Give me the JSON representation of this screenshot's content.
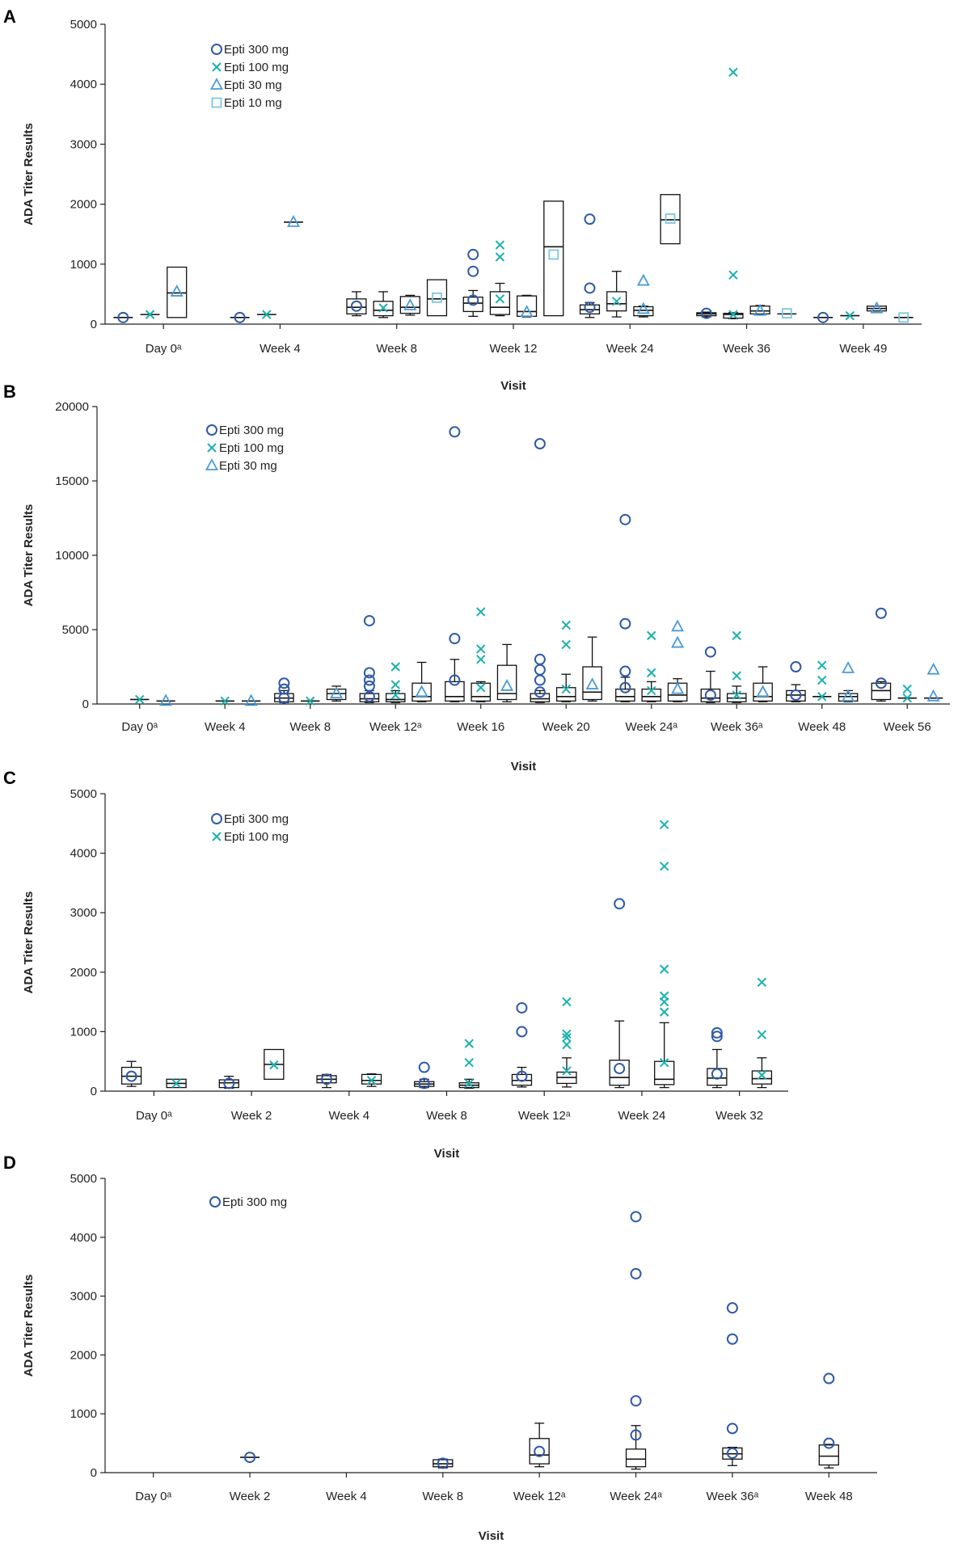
{
  "colors": {
    "epti300": "#2f5aa8",
    "epti100": "#1bb0b0",
    "epti30": "#4a9bd8",
    "epti10": "#7ac7de",
    "box": "#111111"
  },
  "chart_data": [
    {
      "type": "box",
      "panel": "A",
      "ylabel": "ADA Titer Results",
      "xlabel": "Visit",
      "ylim": [
        0,
        5000
      ],
      "yticks": [
        0,
        1000,
        2000,
        3000,
        4000,
        5000
      ],
      "categories": [
        "Day 0ᵃ",
        "Week 4",
        "Week 8",
        "Week 12",
        "Week 24",
        "Week 36",
        "Week 49"
      ],
      "series": [
        {
          "name": "Epti 300 mg",
          "marker": "circle",
          "color": "epti300",
          "boxes": [
            {
              "cat": 0,
              "median": 110,
              "mean": 110
            },
            {
              "cat": 1,
              "median": 110,
              "mean": 110
            },
            {
              "cat": 2,
              "q1": 170,
              "median": 280,
              "q3": 420,
              "wlo": 140,
              "whi": 540,
              "mean": 300
            },
            {
              "cat": 3,
              "q1": 210,
              "median": 350,
              "q3": 450,
              "wlo": 130,
              "whi": 560,
              "mean": 400,
              "outliers": [
                880,
                1160
              ]
            },
            {
              "cat": 4,
              "q1": 170,
              "median": 240,
              "q3": 320,
              "wlo": 110,
              "whi": 360,
              "mean": 280,
              "outliers": [
                600,
                1750
              ]
            },
            {
              "cat": 5,
              "q1": 140,
              "median": 170,
              "q3": 190,
              "wlo": 120,
              "whi": 200,
              "mean": 180
            },
            {
              "cat": 6,
              "median": 110,
              "mean": 110
            }
          ]
        },
        {
          "name": "Epti 100 mg",
          "marker": "x",
          "color": "epti100",
          "boxes": [
            {
              "cat": 0,
              "median": 160,
              "mean": 160
            },
            {
              "cat": 1,
              "median": 160,
              "mean": 160
            },
            {
              "cat": 2,
              "q1": 140,
              "median": 230,
              "q3": 380,
              "wlo": 110,
              "whi": 540,
              "mean": 270
            },
            {
              "cat": 3,
              "q1": 160,
              "median": 280,
              "q3": 540,
              "wlo": 140,
              "whi": 680,
              "mean": 420,
              "outliers": [
                1120,
                1320
              ]
            },
            {
              "cat": 4,
              "q1": 220,
              "median": 340,
              "q3": 540,
              "wlo": 120,
              "whi": 880,
              "mean": 380
            },
            {
              "cat": 5,
              "q1": 100,
              "median": 160,
              "q3": 180,
              "wlo": 90,
              "whi": 190,
              "mean": 160,
              "outliers": [
                820,
                4200
              ]
            },
            {
              "cat": 6,
              "median": 140,
              "mean": 140
            }
          ]
        },
        {
          "name": "Epti 30 mg",
          "marker": "triangle",
          "color": "epti30",
          "boxes": [
            {
              "cat": 0,
              "q1": 110,
              "median": 520,
              "q3": 950,
              "mean": 540
            },
            {
              "cat": 1,
              "median": 1700,
              "mean": 1700
            },
            {
              "cat": 2,
              "q1": 180,
              "median": 280,
              "q3": 460,
              "wlo": 150,
              "whi": 480,
              "mean": 310
            },
            {
              "cat": 3,
              "q1": 130,
              "median": 210,
              "q3": 470,
              "wlo": 120,
              "whi": 480,
              "mean": 200
            },
            {
              "cat": 4,
              "q1": 140,
              "median": 230,
              "q3": 290,
              "wlo": 120,
              "whi": 300,
              "mean": 250,
              "outliers": [
                720
              ]
            },
            {
              "cat": 5,
              "q1": 170,
              "median": 220,
              "q3": 300,
              "wlo": 150,
              "whi": 310,
              "mean": 220
            },
            {
              "cat": 6,
              "q1": 220,
              "median": 260,
              "q3": 300,
              "mean": 260
            }
          ]
        },
        {
          "name": "Epti 10 mg",
          "marker": "square",
          "color": "epti10",
          "boxes": [
            {
              "cat": 2,
              "q1": 140,
              "median": 420,
              "q3": 740,
              "mean": 440
            },
            {
              "cat": 3,
              "q1": 140,
              "median": 1290,
              "q3": 2050,
              "mean": 1160
            },
            {
              "cat": 4,
              "q1": 1340,
              "median": 1740,
              "q3": 2160,
              "mean": 1760
            },
            {
              "cat": 5,
              "median": 170,
              "mean": 180
            },
            {
              "cat": 6,
              "median": 110,
              "mean": 110
            }
          ]
        }
      ]
    },
    {
      "type": "box",
      "panel": "B",
      "ylabel": "ADA Titer Results",
      "xlabel": "Visit",
      "ylim": [
        0,
        20000
      ],
      "yticks": [
        0,
        5000,
        10000,
        15000,
        20000
      ],
      "categories": [
        "Day 0ᵃ",
        "Week 4",
        "Week 8",
        "Week 12ᵃ",
        "Week 16",
        "Week 20",
        "Week 24ᵃ",
        "Week 36ᵃ",
        "Week 48",
        "Week 56"
      ],
      "series": [
        {
          "name": "Epti 300 mg",
          "marker": "circle",
          "color": "epti300",
          "boxes": [
            {
              "cat": 2,
              "q1": 150,
              "median": 400,
              "q3": 700,
              "wlo": 100,
              "whi": 900,
              "mean": 400,
              "outliers": [
                1000,
                1400
              ]
            },
            {
              "cat": 3,
              "q1": 150,
              "median": 350,
              "q3": 700,
              "wlo": 100,
              "whi": 900,
              "mean": 500,
              "outliers": [
                1200,
                1600,
                2100,
                5600
              ]
            },
            {
              "cat": 4,
              "q1": 200,
              "median": 500,
              "q3": 1500,
              "wlo": 150,
              "whi": 3000,
              "mean": 1600,
              "outliers": [
                4400,
                18300
              ]
            },
            {
              "cat": 5,
              "q1": 150,
              "median": 350,
              "q3": 700,
              "wlo": 100,
              "whi": 900,
              "mean": 800,
              "outliers": [
                1600,
                2300,
                3000,
                17500
              ]
            },
            {
              "cat": 6,
              "q1": 200,
              "median": 500,
              "q3": 1000,
              "wlo": 150,
              "whi": 1800,
              "mean": 1100,
              "outliers": [
                2200,
                5400,
                12400
              ]
            },
            {
              "cat": 7,
              "q1": 150,
              "median": 400,
              "q3": 1000,
              "wlo": 100,
              "whi": 2200,
              "mean": 600,
              "outliers": [
                3500
              ]
            },
            {
              "cat": 8,
              "q1": 200,
              "median": 600,
              "q3": 900,
              "wlo": 150,
              "whi": 1300,
              "mean": 600,
              "outliers": [
                2500
              ]
            },
            {
              "cat": 9,
              "q1": 300,
              "median": 900,
              "q3": 1400,
              "wlo": 200,
              "whi": 1500,
              "mean": 1400,
              "outliers": [
                6100
              ]
            }
          ]
        },
        {
          "name": "Epti 100 mg",
          "marker": "x",
          "color": "epti100",
          "boxes": [
            {
              "cat": 0,
              "median": 300,
              "mean": 300
            },
            {
              "cat": 1,
              "median": 200,
              "mean": 200
            },
            {
              "cat": 2,
              "median": 200,
              "mean": 200
            },
            {
              "cat": 3,
              "q1": 150,
              "median": 300,
              "q3": 700,
              "wlo": 100,
              "whi": 900,
              "mean": 600,
              "outliers": [
                1300,
                2500
              ]
            },
            {
              "cat": 4,
              "q1": 200,
              "median": 500,
              "q3": 1400,
              "wlo": 150,
              "whi": 1500,
              "mean": 1100,
              "outliers": [
                3000,
                3700,
                6200
              ]
            },
            {
              "cat": 5,
              "q1": 200,
              "median": 500,
              "q3": 1100,
              "wlo": 150,
              "whi": 2000,
              "mean": 1000,
              "outliers": [
                4000,
                5300
              ]
            },
            {
              "cat": 6,
              "q1": 200,
              "median": 500,
              "q3": 1000,
              "wlo": 150,
              "whi": 1500,
              "mean": 900,
              "outliers": [
                2100,
                4600
              ]
            },
            {
              "cat": 7,
              "q1": 150,
              "median": 400,
              "q3": 700,
              "wlo": 100,
              "whi": 1200,
              "mean": 600,
              "outliers": [
                1900,
                4600
              ]
            },
            {
              "cat": 8,
              "median": 500,
              "mean": 500,
              "outliers": [
                1600,
                2600
              ]
            },
            {
              "cat": 9,
              "median": 400,
              "mean": 400,
              "outliers": [
                1000
              ]
            }
          ]
        },
        {
          "name": "Epti 30 mg",
          "marker": "triangle",
          "color": "epti30",
          "boxes": [
            {
              "cat": 0,
              "median": 200,
              "mean": 200
            },
            {
              "cat": 1,
              "median": 200,
              "mean": 200
            },
            {
              "cat": 2,
              "q1": 300,
              "median": 700,
              "q3": 1000,
              "wlo": 200,
              "whi": 1200,
              "mean": 700
            },
            {
              "cat": 3,
              "q1": 200,
              "median": 500,
              "q3": 1400,
              "wlo": 150,
              "whi": 2800,
              "mean": 800
            },
            {
              "cat": 4,
              "q1": 300,
              "median": 700,
              "q3": 2600,
              "wlo": 150,
              "whi": 4000,
              "mean": 1200
            },
            {
              "cat": 5,
              "q1": 300,
              "median": 800,
              "q3": 2500,
              "wlo": 200,
              "whi": 4500,
              "mean": 1300
            },
            {
              "cat": 6,
              "q1": 200,
              "median": 600,
              "q3": 1400,
              "wlo": 150,
              "whi": 1700,
              "mean": 1000,
              "outliers": [
                4100,
                5200
              ]
            },
            {
              "cat": 7,
              "q1": 200,
              "median": 500,
              "q3": 1400,
              "wlo": 150,
              "whi": 2500,
              "mean": 800
            },
            {
              "cat": 8,
              "q1": 200,
              "median": 500,
              "q3": 700,
              "wlo": 150,
              "whi": 900,
              "mean": 500,
              "outliers": [
                2400
              ]
            },
            {
              "cat": 9,
              "median": 400,
              "mean": 500,
              "outliers": [
                2300
              ]
            }
          ]
        }
      ]
    },
    {
      "type": "box",
      "panel": "C",
      "ylabel": "ADA Titer Results",
      "xlabel": "Visit",
      "ylim": [
        0,
        5000
      ],
      "yticks": [
        0,
        1000,
        2000,
        3000,
        4000,
        5000
      ],
      "categories": [
        "Day 0ᵃ",
        "Week 2",
        "Week 4",
        "Week 8",
        "Week 12ᵃ",
        "Week 24",
        "Week 32"
      ],
      "series": [
        {
          "name": "Epti 300 mg",
          "marker": "circle",
          "color": "epti300",
          "boxes": [
            {
              "cat": 0,
              "q1": 120,
              "median": 250,
              "q3": 400,
              "wlo": 80,
              "whi": 500,
              "mean": 250
            },
            {
              "cat": 1,
              "q1": 60,
              "median": 140,
              "q3": 190,
              "wlo": 50,
              "whi": 250,
              "mean": 130
            },
            {
              "cat": 2,
              "q1": 140,
              "median": 200,
              "q3": 260,
              "wlo": 60,
              "whi": 280,
              "mean": 200
            },
            {
              "cat": 3,
              "q1": 80,
              "median": 120,
              "q3": 160,
              "wlo": 60,
              "whi": 200,
              "mean": 130,
              "outliers": [
                400
              ]
            },
            {
              "cat": 4,
              "q1": 100,
              "median": 180,
              "q3": 280,
              "wlo": 70,
              "whi": 400,
              "mean": 250,
              "outliers": [
                1000,
                1400
              ]
            },
            {
              "cat": 5,
              "q1": 100,
              "median": 230,
              "q3": 520,
              "wlo": 60,
              "whi": 1180,
              "mean": 380,
              "outliers": [
                3150
              ]
            },
            {
              "cat": 6,
              "q1": 100,
              "median": 220,
              "q3": 380,
              "wlo": 60,
              "whi": 700,
              "mean": 290,
              "outliers": [
                920,
                980
              ]
            }
          ]
        },
        {
          "name": "Epti 100 mg",
          "marker": "x",
          "color": "epti100",
          "boxes": [
            {
              "cat": 0,
              "q1": 60,
              "median": 130,
              "q3": 200,
              "mean": 130
            },
            {
              "cat": 1,
              "q1": 200,
              "median": 450,
              "q3": 700,
              "mean": 440
            },
            {
              "cat": 2,
              "q1": 120,
              "median": 180,
              "q3": 280,
              "wlo": 80,
              "whi": 290,
              "mean": 180
            },
            {
              "cat": 3,
              "q1": 60,
              "median": 100,
              "q3": 140,
              "wlo": 50,
              "whi": 200,
              "mean": 130,
              "outliers": [
                480,
                800
              ]
            },
            {
              "cat": 4,
              "q1": 130,
              "median": 230,
              "q3": 320,
              "wlo": 70,
              "whi": 560,
              "mean": 340,
              "outliers": [
                780,
                900,
                960,
                1500
              ]
            },
            {
              "cat": 5,
              "q1": 110,
              "median": 200,
              "q3": 500,
              "wlo": 60,
              "whi": 1150,
              "mean": 480,
              "outliers": [
                1330,
                1500,
                1600,
                2050,
                3780,
                4480
              ]
            },
            {
              "cat": 6,
              "q1": 120,
              "median": 210,
              "q3": 340,
              "wlo": 60,
              "whi": 560,
              "mean": 270,
              "outliers": [
                950,
                1830
              ]
            }
          ]
        }
      ]
    },
    {
      "type": "box",
      "panel": "D",
      "ylabel": "ADA Titer Results",
      "xlabel": "Visit",
      "ylim": [
        0,
        5000
      ],
      "yticks": [
        0,
        1000,
        2000,
        3000,
        4000,
        5000
      ],
      "categories": [
        "Day 0ᵃ",
        "Week 2",
        "Week 4",
        "Week 8",
        "Week 12ᵃ",
        "Week 24ᵃ",
        "Week 36ᵃ",
        "Week 48"
      ],
      "series": [
        {
          "name": "Epti 300 mg",
          "marker": "circle",
          "color": "epti300",
          "boxes": [
            {
              "cat": 1,
              "median": 260,
              "mean": 260
            },
            {
              "cat": 3,
              "q1": 100,
              "median": 150,
              "q3": 220,
              "wlo": 80,
              "whi": 230,
              "mean": 160
            },
            {
              "cat": 4,
              "q1": 150,
              "median": 300,
              "q3": 580,
              "wlo": 100,
              "whi": 840,
              "mean": 360
            },
            {
              "cat": 5,
              "q1": 100,
              "median": 230,
              "q3": 400,
              "wlo": 60,
              "whi": 800,
              "mean": 640,
              "outliers": [
                1220,
                3380,
                4350
              ]
            },
            {
              "cat": 6,
              "q1": 230,
              "median": 320,
              "q3": 420,
              "wlo": 120,
              "whi": 430,
              "mean": 330,
              "outliers": [
                750,
                2270,
                2800
              ]
            },
            {
              "cat": 7,
              "q1": 130,
              "median": 280,
              "q3": 470,
              "wlo": 80,
              "whi": 480,
              "mean": 500,
              "outliers": [
                1600
              ]
            }
          ]
        }
      ]
    }
  ]
}
